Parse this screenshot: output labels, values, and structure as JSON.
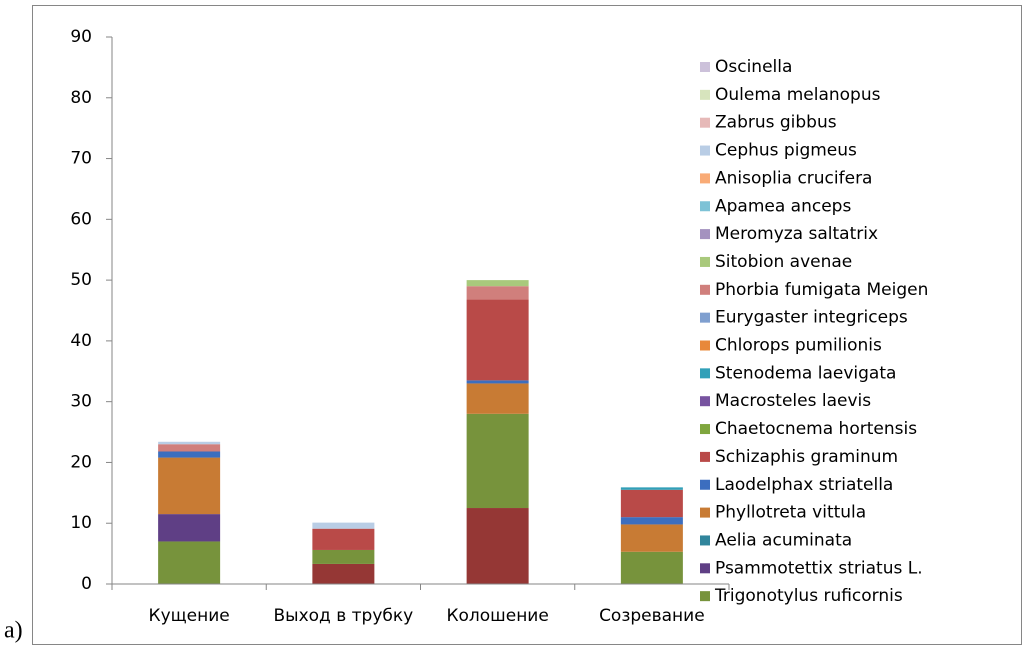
{
  "caption": "а)",
  "chart_data": {
    "type": "stacked-bar",
    "categories": [
      "Кущение",
      "Выход в трубку",
      "Колошение",
      "Созревание"
    ],
    "ylim": [
      0,
      90
    ],
    "yticks": [
      0,
      10,
      20,
      30,
      40,
      50,
      60,
      70,
      80,
      90
    ],
    "grid": false,
    "legend": "right",
    "series": [
      {
        "color": "#953735",
        "values": [
          0,
          3.3,
          12.5,
          0
        ]
      },
      {
        "name": "Trigonotylus ruficornis",
        "color": "#77933c",
        "values": [
          7,
          2.3,
          15.5,
          5.3
        ]
      },
      {
        "name": "Psammotettix striatus L.",
        "color": "#5f3f85",
        "values": [
          4.5,
          0,
          0,
          0
        ]
      },
      {
        "name": "Aelia acuminata",
        "color": "#31859c",
        "values": [
          0,
          0,
          0,
          0
        ]
      },
      {
        "name": "Phyllotreta vittula",
        "color": "#c87b34",
        "values": [
          9.3,
          0,
          5,
          4.5
        ]
      },
      {
        "name": "Laodelphax striatella",
        "color": "#3c6ebf",
        "values": [
          1,
          0,
          0.5,
          1.2
        ]
      },
      {
        "name": "Schizaphis graminum",
        "color": "#b94a48",
        "values": [
          0,
          3.5,
          13.3,
          4.5
        ]
      },
      {
        "name": "Chaetocnema hortensis",
        "color": "#7fa63e",
        "values": [
          0,
          0,
          0,
          0
        ]
      },
      {
        "name": "Macrosteles laevis",
        "color": "#7753a0",
        "values": [
          0,
          0,
          0,
          0
        ]
      },
      {
        "name": "Stenodema laevigata",
        "color": "#31a0b8",
        "values": [
          0,
          0,
          0,
          0.4
        ]
      },
      {
        "name": "Chlorops pumilionis",
        "color": "#e8883a",
        "values": [
          0,
          0,
          0,
          0
        ]
      },
      {
        "name": "Eurygaster integriceps",
        "color": "#7f9fcf",
        "values": [
          0,
          0,
          0,
          0
        ]
      },
      {
        "name": "Phorbia fumigata Meigen",
        "color": "#d07f7c",
        "values": [
          1.2,
          0,
          2.2,
          0
        ]
      },
      {
        "name": "Sitobion avenae",
        "color": "#a9c97c",
        "values": [
          0,
          0,
          1,
          0
        ]
      },
      {
        "name": "Meromyza saltatrix",
        "color": "#a492bf",
        "values": [
          0,
          0,
          0,
          0
        ]
      },
      {
        "name": "Apamea anceps",
        "color": "#7dc2d6",
        "values": [
          0,
          0,
          0,
          0
        ]
      },
      {
        "name": "Anisoplia crucifera",
        "color": "#f9ab76",
        "values": [
          0,
          0,
          0,
          0
        ]
      },
      {
        "name": "Cephus pigmeus",
        "color": "#b9cde5",
        "values": [
          0.4,
          1,
          0,
          0
        ]
      },
      {
        "name": "Zabrus gibbus",
        "color": "#e6b9b8",
        "values": [
          0,
          0,
          0,
          0
        ]
      },
      {
        "name": "Oulema melanopus",
        "color": "#d7e4bd",
        "values": [
          0,
          0,
          0,
          0
        ]
      },
      {
        "name": "Oscinella",
        "color": "#ccc1da",
        "values": [
          0,
          0,
          0,
          0
        ]
      }
    ]
  }
}
